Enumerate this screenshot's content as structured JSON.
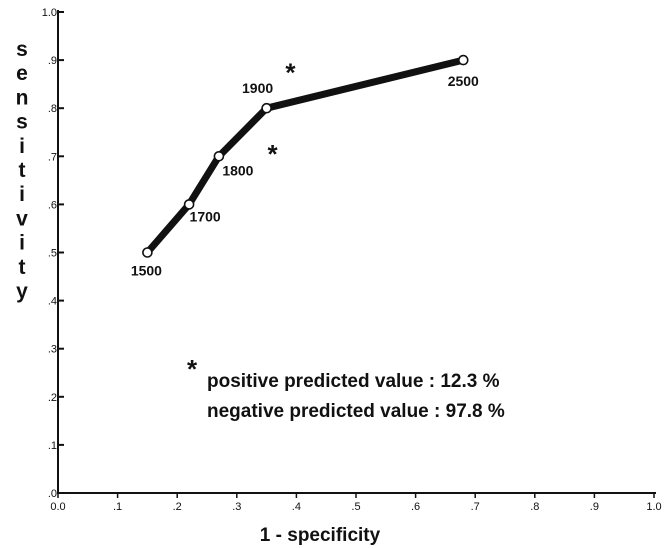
{
  "chart_data": {
    "type": "line",
    "title": "",
    "xlabel": "1 - specificity",
    "ylabel": "sensitivity",
    "xlim": [
      0,
      1
    ],
    "ylim": [
      0,
      1
    ],
    "x_ticks": [
      "0.0",
      ".1",
      ".2",
      ".3",
      ".4",
      ".5",
      ".6",
      ".7",
      ".8",
      ".9",
      "1.0"
    ],
    "y_ticks": [
      ".0",
      ".1",
      ".2",
      ".3",
      ".4",
      ".5",
      ".6",
      ".7",
      ".8",
      ".9",
      "1.0"
    ],
    "grid": false,
    "series": [
      {
        "points": [
          {
            "x": 0.15,
            "y": 0.5,
            "label": "1500"
          },
          {
            "x": 0.22,
            "y": 0.6,
            "label": "1700"
          },
          {
            "x": 0.27,
            "y": 0.7,
            "label": "1800"
          },
          {
            "x": 0.35,
            "y": 0.8,
            "label": "1900"
          },
          {
            "x": 0.68,
            "y": 0.9,
            "label": "2500"
          }
        ]
      }
    ],
    "annotations": [
      {
        "text": "*",
        "x": 0.39,
        "y": 0.885
      },
      {
        "text": "*",
        "x": 0.36,
        "y": 0.715
      }
    ],
    "note": {
      "marker": "*",
      "lines": [
        "positive predicted value : 12.3 %",
        "negative predicted value : 97.8 %"
      ]
    }
  }
}
